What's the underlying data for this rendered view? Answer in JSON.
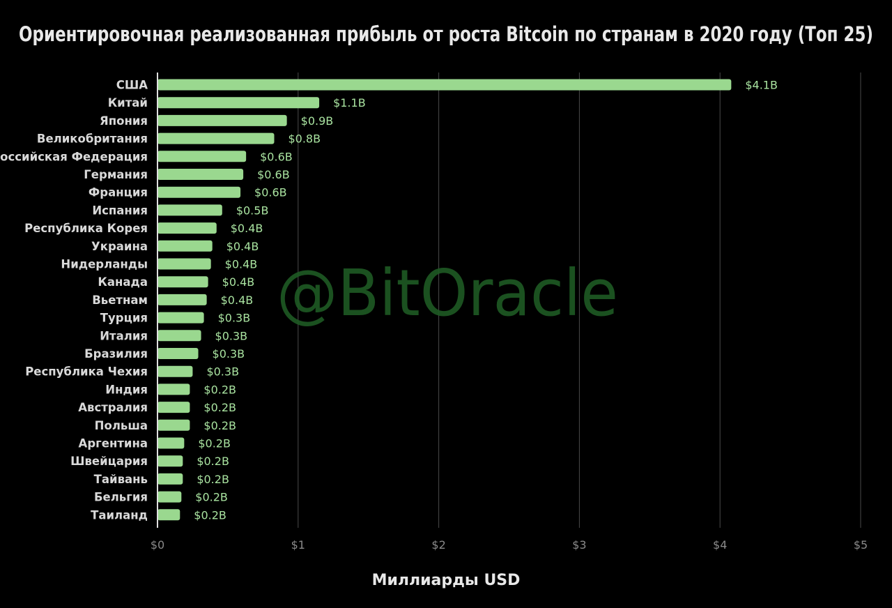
{
  "chart_data": {
    "type": "bar",
    "orientation": "horizontal",
    "title": "Ориентировочная реализованная прибыль от роста Bitcoin по странам в 2020 году (Топ 25)",
    "xlabel": "Миллиарды USD",
    "ylabel": "",
    "xlim": [
      0,
      5
    ],
    "x_ticks": [
      "$0",
      "$1",
      "$2",
      "$3",
      "$4",
      "$5"
    ],
    "grid": true,
    "watermark": "@BitOracle",
    "bar_color": "#9ad88f",
    "categories": [
      "США",
      "Китай",
      "Япония",
      "Великобритания",
      "Российская Федерация",
      "Германия",
      "Франция",
      "Испания",
      "Республика Корея",
      "Украина",
      "Нидерланды",
      "Канада",
      "Вьетнам",
      "Турция",
      "Италия",
      "Бразилия",
      "Республика Чехия",
      "Индия",
      "Австралия",
      "Польша",
      "Аргентина",
      "Швейцария",
      "Тайвань",
      "Бельгия",
      "Таиланд"
    ],
    "values": [
      4.08,
      1.15,
      0.92,
      0.83,
      0.63,
      0.61,
      0.59,
      0.46,
      0.42,
      0.39,
      0.38,
      0.36,
      0.35,
      0.33,
      0.31,
      0.29,
      0.25,
      0.23,
      0.23,
      0.23,
      0.19,
      0.18,
      0.18,
      0.17,
      0.16
    ],
    "value_labels": [
      "$4.1B",
      "$1.1B",
      "$0.9B",
      "$0.8B",
      "$0.6B",
      "$0.6B",
      "$0.6B",
      "$0.5B",
      "$0.4B",
      "$0.4B",
      "$0.4B",
      "$0.4B",
      "$0.4B",
      "$0.3B",
      "$0.3B",
      "$0.3B",
      "$0.3B",
      "$0.2B",
      "$0.2B",
      "$0.2B",
      "$0.2B",
      "$0.2B",
      "$0.2B",
      "$0.2B",
      "$0.2B"
    ]
  }
}
